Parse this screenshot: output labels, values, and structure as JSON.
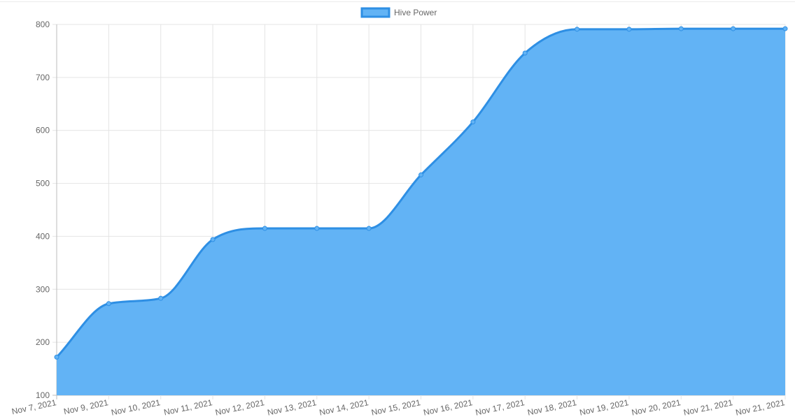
{
  "chart_data": {
    "type": "area",
    "x": [
      "Nov 7, 2021",
      "Nov 9, 2021",
      "Nov 10, 2021",
      "Nov 11, 2021",
      "Nov 12, 2021",
      "Nov 13, 2021",
      "Nov 14, 2021",
      "Nov 15, 2021",
      "Nov 16, 2021",
      "Nov 17, 2021",
      "Nov 18, 2021",
      "Nov 19, 2021",
      "Nov 20, 2021",
      "Nov 21, 2021",
      "Nov 21, 2021"
    ],
    "series": [
      {
        "name": "Hive Power",
        "values": [
          172,
          273,
          283,
          394,
          415,
          415,
          415,
          516,
          616,
          746,
          791,
          791,
          792,
          792,
          792
        ],
        "fill_color": "#62b3f5",
        "line_color": "#2e8fe4"
      }
    ],
    "ylim": [
      100,
      800
    ],
    "yticks": [
      100,
      200,
      300,
      400,
      500,
      600,
      700,
      800
    ],
    "grid": true,
    "legend_position": "top-center",
    "title": "",
    "xlabel": "",
    "ylabel": ""
  }
}
